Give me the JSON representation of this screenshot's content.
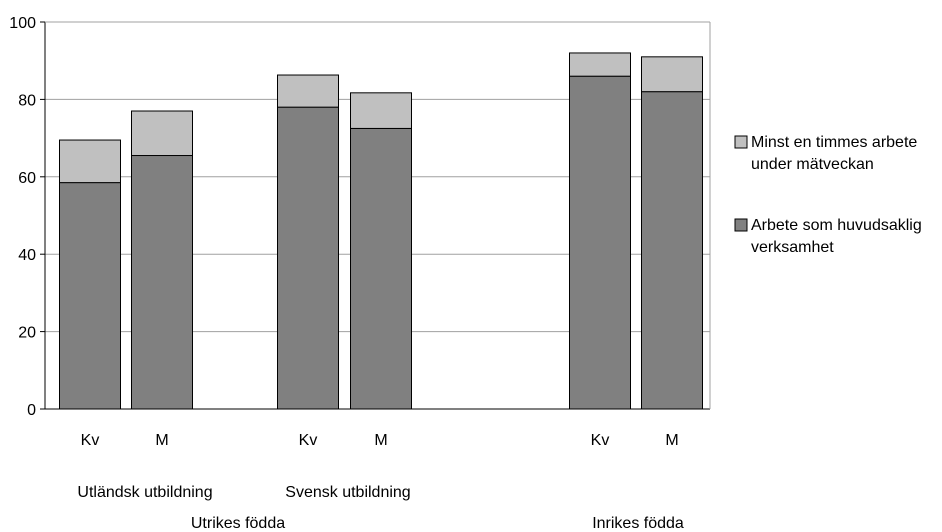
{
  "chart_data": {
    "type": "bar",
    "stacked": true,
    "ylim": [
      0,
      100
    ],
    "yticks": [
      0,
      20,
      40,
      60,
      80,
      100
    ],
    "grid": true,
    "legend_position": "right",
    "categories": [
      "Kv",
      "M",
      "Kv",
      "M",
      "Kv",
      "M"
    ],
    "groups": [
      {
        "label": "Utländsk utbildning",
        "members": [
          0,
          1
        ]
      },
      {
        "label": "Svensk utbildning",
        "members": [
          2,
          3
        ]
      }
    ],
    "supergroups": [
      {
        "label": "Utrikes födda",
        "members": [
          0,
          1,
          2,
          3
        ]
      },
      {
        "label": "Inrikes födda",
        "members": [
          4,
          5
        ]
      }
    ],
    "series": [
      {
        "name": "Arbete som huvudsaklig verksamhet",
        "legend_lines": [
          "Arbete som huvudsaklig",
          "verksamhet"
        ],
        "color": "#808080",
        "values": [
          58.5,
          65.5,
          78,
          72.5,
          86,
          82
        ]
      },
      {
        "name": "Minst en timmes arbete under mätveckan",
        "legend_lines": [
          "Minst en timmes arbete",
          "under mätveckan"
        ],
        "color": "#c0c0c0",
        "values": [
          11,
          11.5,
          8.3,
          9.2,
          6,
          9
        ]
      }
    ]
  }
}
